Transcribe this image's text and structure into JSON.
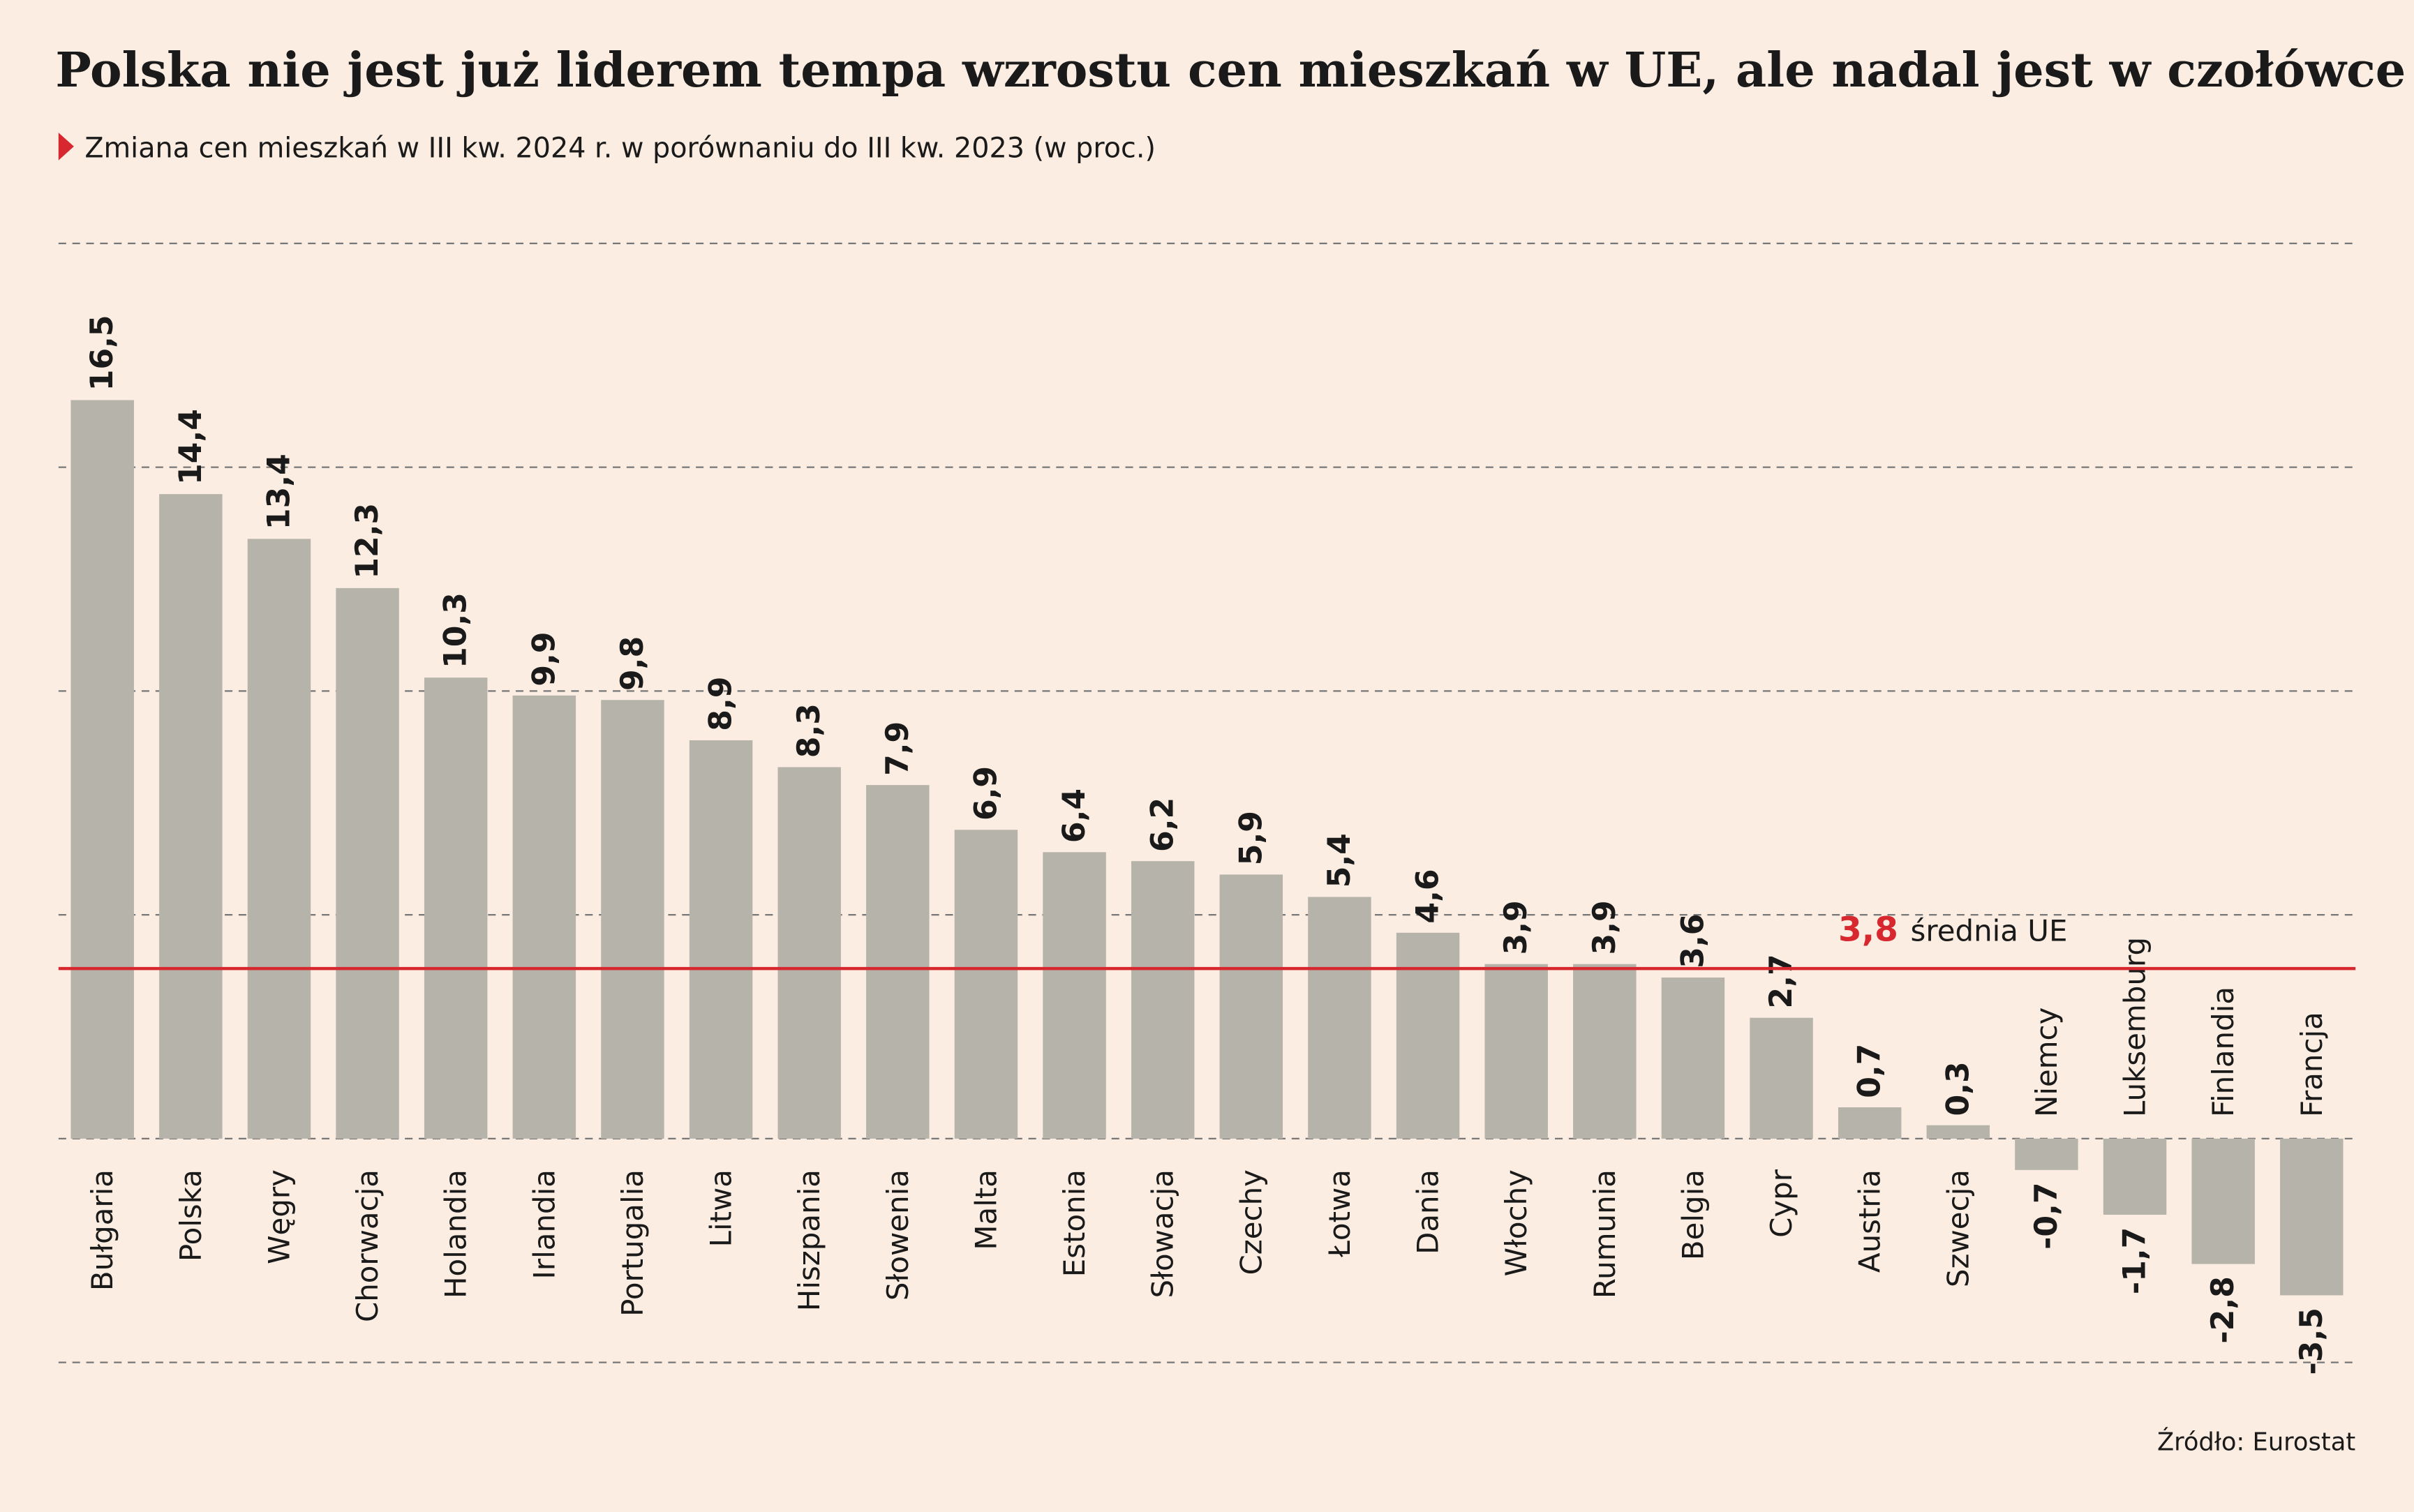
{
  "chart_data": {
    "type": "bar",
    "title": "Polska nie jest już liderem tempa wzrostu cen mieszkań w UE, ale nadal jest w czołówce",
    "subtitle": "Zmiana cen mieszkań w III kw. 2024 r. w porównaniu do III kw. 2023 (w proc.)",
    "source": "Źródło: Eurostat",
    "categories": [
      "Bułgaria",
      "Polska",
      "Węgry",
      "Chorwacja",
      "Holandia",
      "Irlandia",
      "Portugalia",
      "Litwa",
      "Hiszpania",
      "Słowenia",
      "Malta",
      "Estonia",
      "Słowacja",
      "Czechy",
      "Łotwa",
      "Dania",
      "Włochy",
      "Rumunia",
      "Belgia",
      "Cypr",
      "Austria",
      "Szwecja",
      "Niemcy",
      "Luksemburg",
      "Finlandia",
      "Francja"
    ],
    "values": [
      16.5,
      14.4,
      13.4,
      12.3,
      10.3,
      9.9,
      9.8,
      8.9,
      8.3,
      7.9,
      6.9,
      6.4,
      6.2,
      5.9,
      5.4,
      4.6,
      3.9,
      3.9,
      3.6,
      2.7,
      0.7,
      0.3,
      -0.7,
      -1.7,
      -2.8,
      -3.5
    ],
    "value_labels": [
      "16,5",
      "14,4",
      "13,4",
      "12,3",
      "10,3",
      "9,9",
      "9,8",
      "8,9",
      "8,3",
      "7,9",
      "6,9",
      "6,4",
      "6,2",
      "5,9",
      "5,4",
      "4,6",
      "3,9",
      "3,9",
      "3,6",
      "2,7",
      "0,7",
      "0,3",
      "-0,7",
      "-1,7",
      "-2,8",
      "-3,5"
    ],
    "color": "#b5b3aa",
    "ylim": [
      -5,
      20
    ],
    "yticks": [
      -5,
      0,
      5,
      10,
      15,
      20
    ],
    "grid": true,
    "reference_line": {
      "value": 3.8,
      "label": "3,8",
      "text": "średnia UE",
      "color": "#d7282f"
    }
  }
}
